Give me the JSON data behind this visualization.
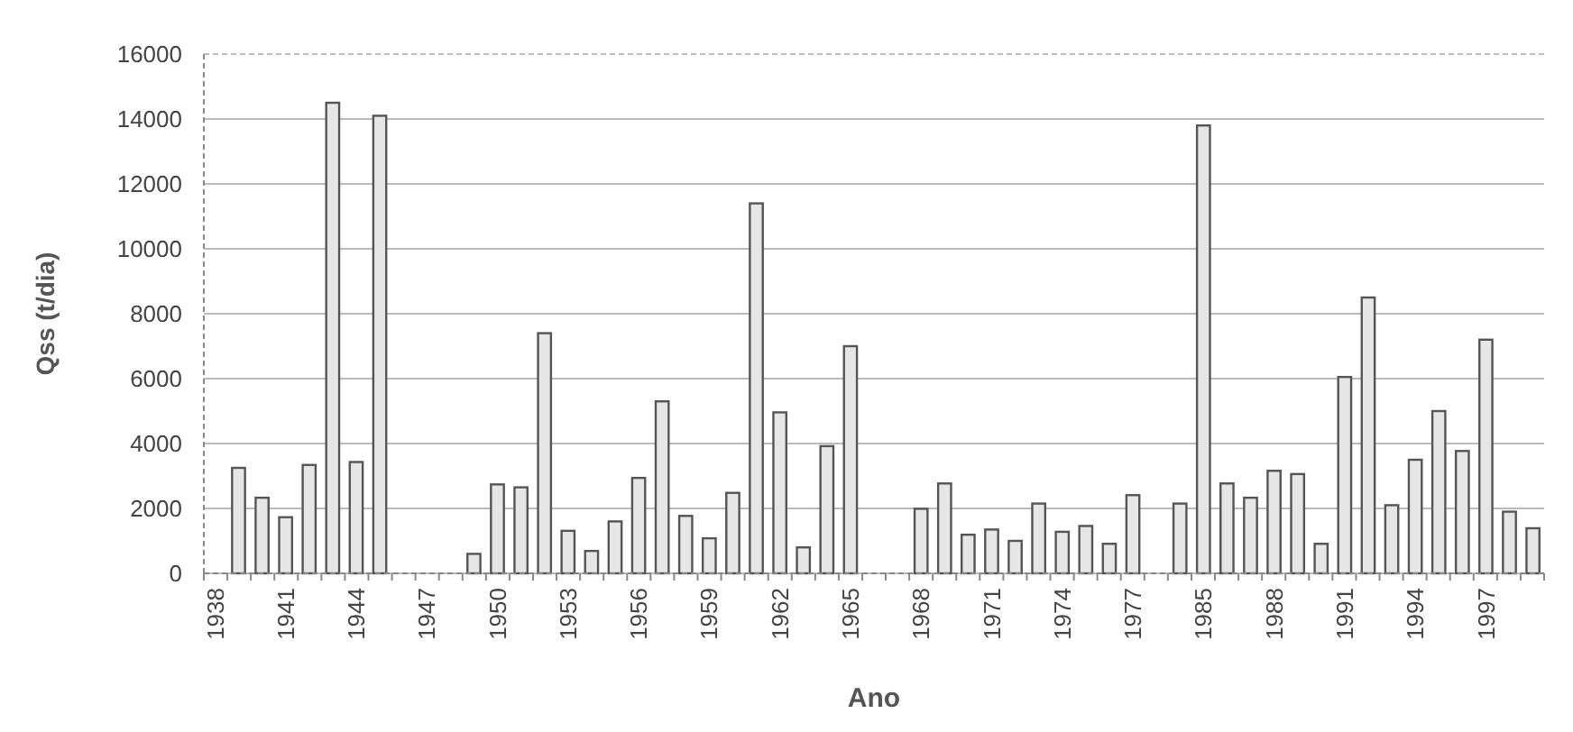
{
  "chart_data": {
    "type": "bar",
    "xlabel": "Ano",
    "ylabel": "Qss (t/dia)",
    "categories": [
      "1938",
      null,
      null,
      "1941",
      null,
      null,
      "1944",
      null,
      null,
      "1947",
      null,
      null,
      "1950",
      null,
      null,
      "1953",
      null,
      null,
      "1956",
      null,
      null,
      "1959",
      null,
      null,
      "1962",
      null,
      null,
      "1965",
      null,
      null,
      "1968",
      null,
      null,
      "1971",
      null,
      null,
      "1974",
      null,
      null,
      "1977",
      null,
      null,
      "1985",
      null,
      null,
      "1988",
      null,
      null,
      "1991",
      null,
      null,
      "1994",
      null,
      null,
      "1997",
      null,
      null
    ],
    "values": [
      null,
      3250,
      2330,
      1730,
      3340,
      14500,
      3430,
      14100,
      null,
      null,
      null,
      600,
      2740,
      2650,
      7400,
      1310,
      690,
      1600,
      2940,
      5300,
      1770,
      1080,
      2480,
      11400,
      4960,
      800,
      3920,
      7000,
      null,
      null,
      1990,
      2770,
      1190,
      1350,
      1000,
      2150,
      1280,
      1460,
      910,
      2410,
      null,
      2150,
      13800,
      2770,
      2330,
      3160,
      3060,
      910,
      6050,
      8500,
      2100,
      3500,
      5000,
      3770,
      7200,
      1900,
      1390
    ],
    "color": "#e6e6e6",
    "ylim": [
      0,
      16000
    ],
    "yticks": [
      0,
      2000,
      4000,
      6000,
      8000,
      10000,
      12000,
      14000,
      16000
    ],
    "grid": "y"
  }
}
